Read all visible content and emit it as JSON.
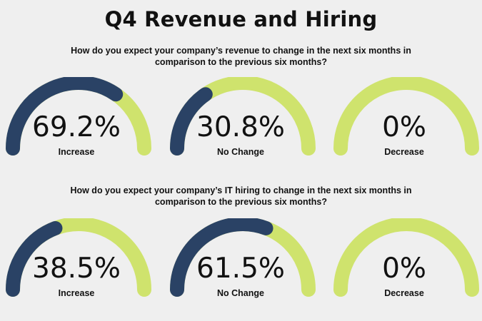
{
  "title": "Q4 Revenue and Hiring",
  "colors": {
    "filled": "#2a4265",
    "track": "#cfe36d",
    "background": "#efefef"
  },
  "chart_data": [
    {
      "type": "gauge",
      "question": "How do you expect your company’s revenue to change in the next six months in comparison to the previous six months?",
      "items": [
        {
          "value": 69.2,
          "text": "69.2%",
          "label": "Increase"
        },
        {
          "value": 30.8,
          "text": "30.8%",
          "label": "No Change"
        },
        {
          "value": 0,
          "text": "0%",
          "label": "Decrease"
        }
      ]
    },
    {
      "type": "gauge",
      "question": "How do you expect your company’s IT hiring to change in the next six months in comparison to the previous six months?",
      "items": [
        {
          "value": 38.5,
          "text": "38.5%",
          "label": "Increase"
        },
        {
          "value": 61.5,
          "text": "61.5%",
          "label": "No Change"
        },
        {
          "value": 0,
          "text": "0%",
          "label": "Decrease"
        }
      ]
    }
  ]
}
